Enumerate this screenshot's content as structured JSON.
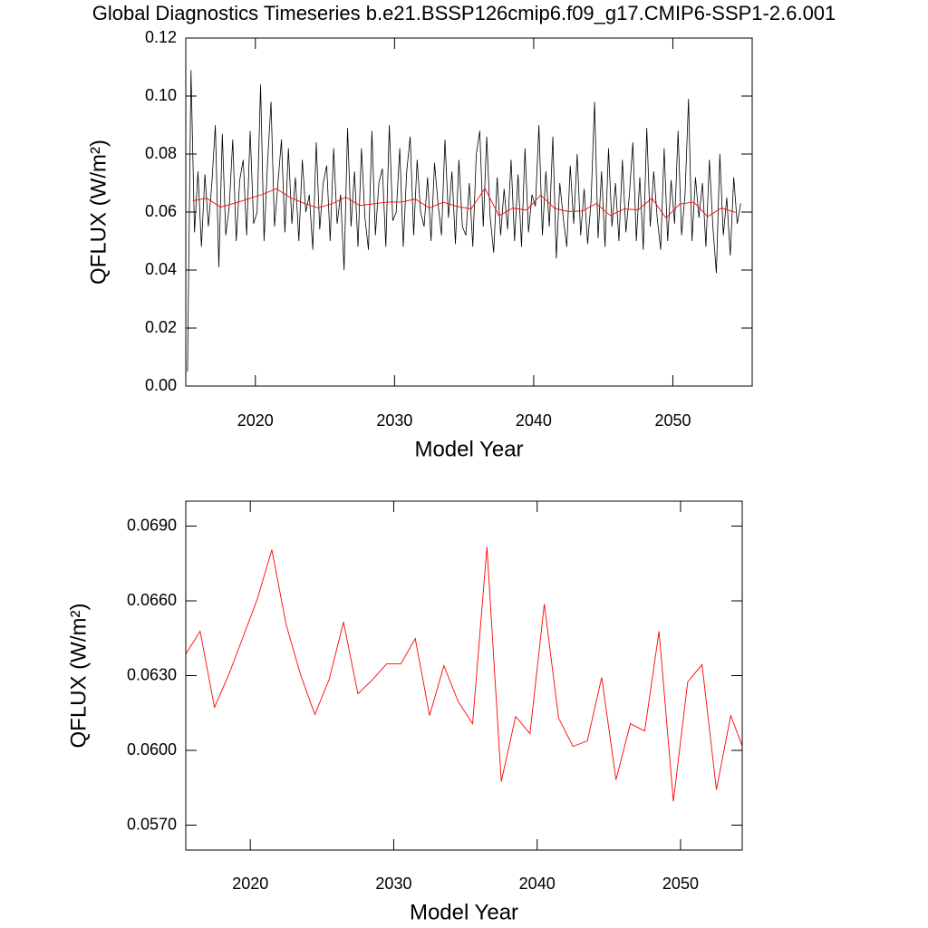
{
  "chart_data": [
    {
      "type": "line",
      "title": "Global Diagnostics Timeseries b.e21.BSSP126cmip6.f09_g17.CMIP6-SSP1-2.6.001",
      "xlabel": "Model Year",
      "ylabel": "QFLUX (W/m²)",
      "xlim": [
        2015,
        2055.7
      ],
      "xticks": [
        2020,
        2030,
        2040,
        2050
      ],
      "ylim": [
        0,
        0.12
      ],
      "yticks": [
        {
          "value": 0,
          "label": "0.00"
        },
        0.02,
        0.04,
        0.06,
        0.08,
        {
          "value": 0.1,
          "label": "0.10"
        },
        0.12
      ],
      "series": [
        {
          "color": "#000000",
          "x": [
            2015.125,
            2015.375,
            2015.625,
            2015.875,
            2016.125,
            2016.375,
            2016.625,
            2016.875,
            2017.125,
            2017.375,
            2017.625,
            2017.875,
            2018.125,
            2018.375,
            2018.625,
            2018.875,
            2019.125,
            2019.375,
            2019.625,
            2019.875,
            2020.125,
            2020.375,
            2020.625,
            2020.875,
            2021.125,
            2021.375,
            2021.625,
            2021.875,
            2022.125,
            2022.375,
            2022.625,
            2022.875,
            2023.125,
            2023.375,
            2023.625,
            2023.875,
            2024.125,
            2024.375,
            2024.625,
            2024.875,
            2025.125,
            2025.375,
            2025.625,
            2025.875,
            2026.125,
            2026.375,
            2026.625,
            2026.875,
            2027.125,
            2027.375,
            2027.625,
            2027.875,
            2028.125,
            2028.375,
            2028.625,
            2028.875,
            2029.125,
            2029.375,
            2029.625,
            2029.875,
            2030.125,
            2030.375,
            2030.625,
            2030.875,
            2031.125,
            2031.375,
            2031.625,
            2031.875,
            2032.125,
            2032.375,
            2032.625,
            2032.875,
            2033.125,
            2033.375,
            2033.625,
            2033.875,
            2034.125,
            2034.375,
            2034.625,
            2034.875,
            2035.125,
            2035.375,
            2035.625,
            2035.875,
            2036.125,
            2036.375,
            2036.625,
            2036.875,
            2037.125,
            2037.375,
            2037.625,
            2037.875,
            2038.125,
            2038.375,
            2038.625,
            2038.875,
            2039.125,
            2039.375,
            2039.625,
            2039.875,
            2040.125,
            2040.375,
            2040.625,
            2040.875,
            2041.125,
            2041.375,
            2041.625,
            2041.875,
            2042.125,
            2042.375,
            2042.625,
            2042.875,
            2043.125,
            2043.375,
            2043.625,
            2043.875,
            2044.125,
            2044.375,
            2044.625,
            2044.875,
            2045.125,
            2045.375,
            2045.625,
            2045.875,
            2046.125,
            2046.375,
            2046.625,
            2046.875,
            2047.125,
            2047.375,
            2047.625,
            2047.875,
            2048.125,
            2048.375,
            2048.625,
            2048.875,
            2049.125,
            2049.375,
            2049.625,
            2049.875,
            2050.125,
            2050.375,
            2050.625,
            2050.875,
            2051.125,
            2051.375,
            2051.625,
            2051.875,
            2052.125,
            2052.375,
            2052.625,
            2052.875,
            2053.125,
            2053.375,
            2053.625,
            2053.875,
            2054.125,
            2054.375,
            2054.625,
            2054.875
          ],
          "values": [
            0.005,
            0.109,
            0.053,
            0.074,
            0.048,
            0.073,
            0.055,
            0.07,
            0.09,
            0.041,
            0.087,
            0.052,
            0.062,
            0.085,
            0.05,
            0.071,
            0.078,
            0.052,
            0.088,
            0.056,
            0.06,
            0.104,
            0.05,
            0.077,
            0.098,
            0.055,
            0.07,
            0.085,
            0.053,
            0.082,
            0.056,
            0.072,
            0.05,
            0.078,
            0.06,
            0.066,
            0.047,
            0.084,
            0.054,
            0.07,
            0.076,
            0.05,
            0.082,
            0.056,
            0.066,
            0.04,
            0.089,
            0.055,
            0.074,
            0.048,
            0.082,
            0.058,
            0.047,
            0.088,
            0.052,
            0.07,
            0.075,
            0.048,
            0.09,
            0.057,
            0.06,
            0.082,
            0.048,
            0.074,
            0.086,
            0.052,
            0.078,
            0.06,
            0.055,
            0.072,
            0.05,
            0.077,
            0.063,
            0.052,
            0.085,
            0.058,
            0.074,
            0.049,
            0.078,
            0.055,
            0.052,
            0.07,
            0.048,
            0.08,
            0.088,
            0.055,
            0.086,
            0.058,
            0.046,
            0.072,
            0.052,
            0.068,
            0.054,
            0.078,
            0.05,
            0.073,
            0.048,
            0.082,
            0.053,
            0.066,
            0.062,
            0.09,
            0.052,
            0.074,
            0.055,
            0.086,
            0.044,
            0.07,
            0.058,
            0.048,
            0.076,
            0.056,
            0.08,
            0.052,
            0.068,
            0.049,
            0.064,
            0.098,
            0.051,
            0.074,
            0.048,
            0.082,
            0.055,
            0.07,
            0.05,
            0.078,
            0.053,
            0.066,
            0.084,
            0.05,
            0.072,
            0.047,
            0.089,
            0.055,
            0.074,
            0.058,
            0.047,
            0.082,
            0.05,
            0.071,
            0.056,
            0.088,
            0.052,
            0.066,
            0.099,
            0.05,
            0.072,
            0.058,
            0.07,
            0.048,
            0.078,
            0.055,
            0.039,
            0.08,
            0.052,
            0.065,
            0.045,
            0.072,
            0.056,
            0.063
          ]
        },
        {
          "color": "#ff0000",
          "x": [
            2015.5,
            2016.5,
            2017.5,
            2018.5,
            2019.5,
            2020.5,
            2021.5,
            2022.5,
            2023.5,
            2024.5,
            2025.5,
            2026.5,
            2027.5,
            2028.5,
            2029.5,
            2030.5,
            2031.5,
            2032.5,
            2033.5,
            2034.5,
            2035.5,
            2036.5,
            2037.5,
            2038.5,
            2039.5,
            2040.5,
            2041.5,
            2042.5,
            2043.5,
            2044.5,
            2045.5,
            2046.5,
            2047.5,
            2048.5,
            2049.5,
            2050.5,
            2051.5,
            2052.5,
            2053.5,
            2054.5
          ],
          "values": [
            0.06387,
            0.06478,
            0.06173,
            0.06304,
            0.06456,
            0.06609,
            0.06805,
            0.06504,
            0.06304,
            0.06144,
            0.06285,
            0.06515,
            0.06227,
            0.06282,
            0.06347,
            0.06347,
            0.06449,
            0.0614,
            0.0634,
            0.06195,
            0.06107,
            0.06816,
            0.05875,
            0.06136,
            0.06067,
            0.06587,
            0.06129,
            0.06016,
            0.06038,
            0.06293,
            0.05882,
            0.06107,
            0.06078,
            0.06478,
            0.05795,
            0.06275,
            0.06344,
            0.05842,
            0.0614,
            0.05987
          ]
        }
      ]
    },
    {
      "type": "line",
      "xlabel": "Model Year",
      "ylabel": "QFLUX (W/m²)",
      "xlim": [
        2015.5,
        2054.3
      ],
      "xticks": [
        2020,
        2030,
        2040,
        2050
      ],
      "ylim": [
        0.056,
        0.07
      ],
      "yticks": [
        {
          "value": 0.057,
          "label": "0.0570"
        },
        {
          "value": 0.06,
          "label": "0.0600"
        },
        {
          "value": 0.063,
          "label": "0.0630"
        },
        {
          "value": 0.066,
          "label": "0.0660"
        },
        {
          "value": 0.069,
          "label": "0.0690"
        }
      ],
      "series": [
        {
          "color": "#ff0000",
          "x": [
            2015.5,
            2016.5,
            2017.5,
            2018.5,
            2019.5,
            2020.5,
            2021.5,
            2022.5,
            2023.5,
            2024.5,
            2025.5,
            2026.5,
            2027.5,
            2028.5,
            2029.5,
            2030.5,
            2031.5,
            2032.5,
            2033.5,
            2034.5,
            2035.5,
            2036.5,
            2037.5,
            2038.5,
            2039.5,
            2040.5,
            2041.5,
            2042.5,
            2043.5,
            2044.5,
            2045.5,
            2046.5,
            2047.5,
            2048.5,
            2049.5,
            2050.5,
            2051.5,
            2052.5,
            2053.5,
            2054.5
          ],
          "values": [
            0.06387,
            0.06478,
            0.06173,
            0.06304,
            0.06456,
            0.06609,
            0.06805,
            0.06504,
            0.06304,
            0.06144,
            0.06285,
            0.06515,
            0.06227,
            0.06282,
            0.06347,
            0.06347,
            0.06449,
            0.0614,
            0.0634,
            0.06195,
            0.06107,
            0.06816,
            0.05875,
            0.06136,
            0.06067,
            0.06587,
            0.06129,
            0.06016,
            0.06038,
            0.06293,
            0.05882,
            0.06107,
            0.06078,
            0.06478,
            0.05795,
            0.06275,
            0.06344,
            0.05842,
            0.0614,
            0.05987
          ]
        }
      ]
    }
  ]
}
